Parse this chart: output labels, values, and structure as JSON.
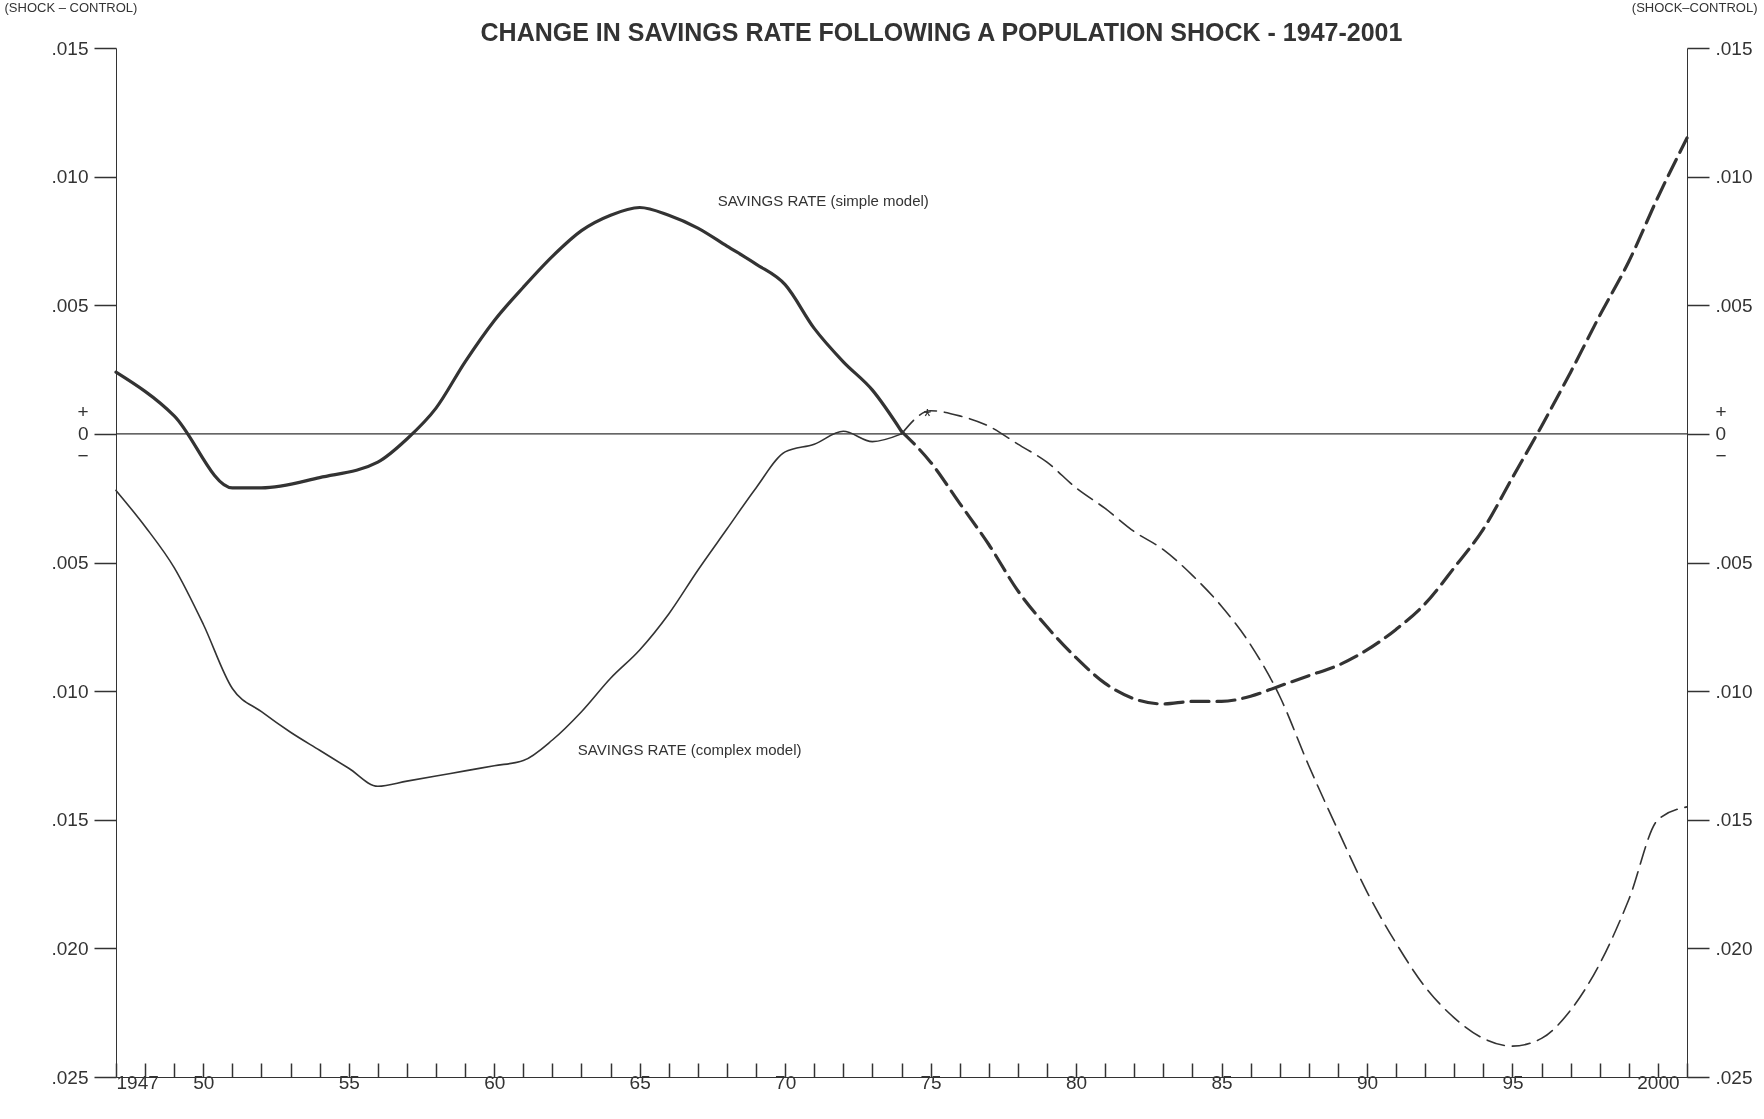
{
  "chart_data": {
    "type": "line",
    "title": "CHANGE IN SAVINGS RATE FOLLOWING A POPULATION SHOCK  - 1947-2001",
    "ylabel": "(SHOCK – CONTROL)",
    "y2label": "(SHOCK–CONTROL)",
    "xlim": [
      1947,
      2001
    ],
    "xticks": [
      {
        "value": 1947,
        "label": "1947"
      },
      {
        "value": 1948,
        "label": null
      },
      {
        "value": 1949,
        "label": null
      },
      {
        "value": 1950,
        "label": "50"
      },
      {
        "value": 1951,
        "label": null
      },
      {
        "value": 1952,
        "label": null
      },
      {
        "value": 1953,
        "label": null
      },
      {
        "value": 1954,
        "label": null
      },
      {
        "value": 1955,
        "label": "55"
      },
      {
        "value": 1956,
        "label": null
      },
      {
        "value": 1957,
        "label": null
      },
      {
        "value": 1958,
        "label": null
      },
      {
        "value": 1959,
        "label": null
      },
      {
        "value": 1960,
        "label": "60"
      },
      {
        "value": 1961,
        "label": null
      },
      {
        "value": 1962,
        "label": null
      },
      {
        "value": 1963,
        "label": null
      },
      {
        "value": 1964,
        "label": null
      },
      {
        "value": 1965,
        "label": "65"
      },
      {
        "value": 1966,
        "label": null
      },
      {
        "value": 1967,
        "label": null
      },
      {
        "value": 1968,
        "label": null
      },
      {
        "value": 1969,
        "label": null
      },
      {
        "value": 1970,
        "label": "70"
      },
      {
        "value": 1971,
        "label": null
      },
      {
        "value": 1972,
        "label": null
      },
      {
        "value": 1973,
        "label": null
      },
      {
        "value": 1974,
        "label": null
      },
      {
        "value": 1975,
        "label": "75"
      },
      {
        "value": 1976,
        "label": null
      },
      {
        "value": 1977,
        "label": null
      },
      {
        "value": 1978,
        "label": null
      },
      {
        "value": 1979,
        "label": null
      },
      {
        "value": 1980,
        "label": "80"
      },
      {
        "value": 1981,
        "label": null
      },
      {
        "value": 1982,
        "label": null
      },
      {
        "value": 1983,
        "label": null
      },
      {
        "value": 1984,
        "label": null
      },
      {
        "value": 1985,
        "label": "85"
      },
      {
        "value": 1986,
        "label": null
      },
      {
        "value": 1987,
        "label": null
      },
      {
        "value": 1988,
        "label": null
      },
      {
        "value": 1989,
        "label": null
      },
      {
        "value": 1990,
        "label": "90"
      },
      {
        "value": 1991,
        "label": null
      },
      {
        "value": 1992,
        "label": null
      },
      {
        "value": 1993,
        "label": null
      },
      {
        "value": 1994,
        "label": null
      },
      {
        "value": 1995,
        "label": "95"
      },
      {
        "value": 1996,
        "label": null
      },
      {
        "value": 1997,
        "label": null
      },
      {
        "value": 1998,
        "label": null
      },
      {
        "value": 1999,
        "label": null
      },
      {
        "value": 2000,
        "label": "2000"
      },
      {
        "value": 2001,
        "label": null
      }
    ],
    "ylim": [
      -0.025,
      0.015
    ],
    "yticks": [
      {
        "value": 0.015,
        "label": ".015"
      },
      {
        "value": 0.01,
        "label": ".010"
      },
      {
        "value": 0.005,
        "label": ".005"
      },
      {
        "value": 0,
        "label": "+\n0\n−"
      },
      {
        "value": -0.005,
        "label": ".005"
      },
      {
        "value": -0.01,
        "label": ".010"
      },
      {
        "value": -0.015,
        "label": ".015"
      },
      {
        "value": -0.02,
        "label": ".020"
      },
      {
        "value": -0.025,
        "label": ".025"
      }
    ],
    "y2lim": [
      -0.025,
      0.015
    ],
    "y2ticks": [
      {
        "value": 0.015,
        "label": ".015"
      },
      {
        "value": 0.01,
        "label": ".010"
      },
      {
        "value": 0.005,
        "label": ".005"
      },
      {
        "value": 0,
        "label": "+\n0\n−"
      },
      {
        "value": -0.005,
        "label": ".005"
      },
      {
        "value": -0.01,
        "label": ".010"
      },
      {
        "value": -0.015,
        "label": ".015"
      },
      {
        "value": -0.02,
        "label": ".020"
      },
      {
        "value": -0.025,
        "label": ".025"
      }
    ],
    "grid": false,
    "ref_lines": [
      {
        "axis": "y",
        "value": 0,
        "color": "#333333"
      }
    ],
    "annotations": [
      "*"
    ],
    "series": [
      {
        "name": "SAVINGS RATE (simple model)",
        "color": "#333333",
        "line_style": "solid",
        "x": [
          1947,
          1949,
          1951,
          1952,
          1954,
          1956,
          1957,
          1958,
          1959,
          1960,
          1961,
          1962,
          1963,
          1964,
          1965,
          1966,
          1967,
          1968,
          1969,
          1970,
          1971,
          1972,
          1973,
          1974
        ],
        "values": [
          0.0024,
          0.0007,
          -0.0021,
          -0.0021,
          -0.0017,
          -0.0011,
          -0.0002,
          0.001,
          0.0028,
          0.0044,
          0.0057,
          0.0069,
          0.0079,
          0.0085,
          0.0088,
          0.0085,
          0.008,
          0.0073,
          0.0066,
          0.0058,
          0.0041,
          0.0028,
          0.0017,
          0.0001
        ]
      },
      {
        "color": "#333333",
        "line_style": "dashed",
        "x": [
          1974,
          1975,
          1976,
          1977,
          1978,
          1979,
          1980,
          1981,
          1982,
          1983,
          1984,
          1985,
          1986,
          1987,
          1988,
          1989,
          1990,
          1991,
          1992,
          1993,
          1994,
          1995,
          1996,
          1997,
          1998,
          1999,
          2000,
          2001
        ],
        "values": [
          0.0001,
          -0.0011,
          -0.0027,
          -0.0043,
          -0.0061,
          -0.0075,
          -0.0087,
          -0.0097,
          -0.0103,
          -0.0105,
          -0.0104,
          -0.0104,
          -0.0102,
          -0.0098,
          -0.0094,
          -0.009,
          -0.0084,
          -0.0076,
          -0.0066,
          -0.0052,
          -0.0037,
          -0.0017,
          0.0003,
          0.0024,
          0.0046,
          0.0067,
          0.0092,
          0.0115
        ]
      },
      {
        "name": "SAVINGS RATE (complex model)",
        "color": "#333333",
        "line_style": "solid",
        "x": [
          1947,
          1948,
          1949,
          1950,
          1951,
          1952,
          1953,
          1954,
          1955,
          1956,
          1957,
          1958,
          1959,
          1960,
          1961,
          1962,
          1963,
          1964,
          1965,
          1966,
          1967,
          1968,
          1969,
          1970,
          1971,
          1972,
          1973,
          1974
        ],
        "values": [
          -0.0022,
          -0.0036,
          -0.0052,
          -0.0074,
          -0.0099,
          -0.0108,
          -0.0116,
          -0.0123,
          -0.013,
          -0.0137,
          -0.0135,
          -0.0133,
          -0.0131,
          -0.0129,
          -0.0127,
          -0.0119,
          -0.0108,
          -0.0095,
          -0.0084,
          -0.007,
          -0.0053,
          -0.0037,
          -0.0021,
          -0.0007,
          -0.0004,
          0.0001,
          -0.0003,
          0
        ]
      },
      {
        "color": "#333333",
        "line_style": "dashed",
        "x": [
          1974,
          1975,
          1976,
          1977,
          1978,
          1979,
          1980,
          1981,
          1982,
          1983,
          1984,
          1985,
          1986,
          1987,
          1988,
          1989,
          1990,
          1991,
          1992,
          1993,
          1994,
          1995,
          1996,
          1997,
          1998,
          1999,
          2000,
          2001
        ],
        "values": [
          0,
          0.0009,
          0.0007,
          0.0003,
          -0.0004,
          -0.0011,
          -0.0021,
          -0.0029,
          -0.0038,
          -0.0045,
          -0.0055,
          -0.0067,
          -0.0082,
          -0.0102,
          -0.0129,
          -0.0154,
          -0.0178,
          -0.0198,
          -0.0215,
          -0.0227,
          -0.0235,
          -0.0238,
          -0.0235,
          -0.0224,
          -0.0206,
          -0.0181,
          -0.015,
          -0.0145
        ]
      }
    ]
  }
}
